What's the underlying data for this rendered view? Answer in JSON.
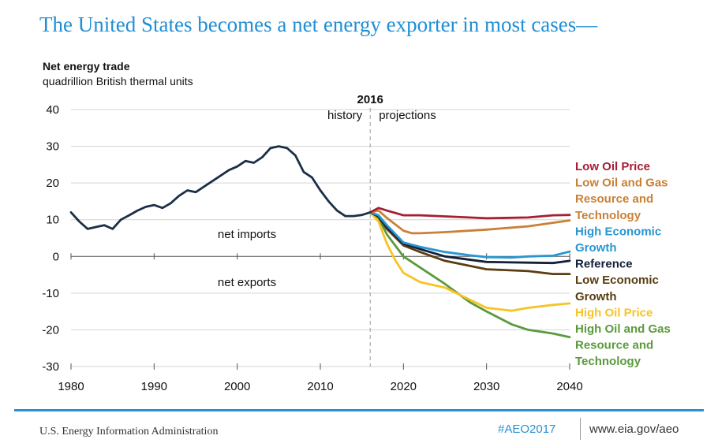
{
  "page": {
    "title": "The United States becomes a net energy exporter in most cases—",
    "footer": {
      "agency": "U.S. Energy Information Administration",
      "hashtag": "#AEO2017",
      "website": "www.eia.gov/aeo"
    }
  },
  "colors": {
    "title": "#1f8fd6",
    "rule": "#2a8fd3"
  },
  "chart_data": {
    "type": "line",
    "ylabel": "Net energy trade",
    "yunit": "quadrillion British thermal units",
    "xlim": [
      1980,
      2040
    ],
    "ylim": [
      -30,
      40
    ],
    "xticks": [
      1980,
      1990,
      2000,
      2010,
      2020,
      2030,
      2040
    ],
    "yticks": [
      40,
      30,
      20,
      10,
      0,
      -10,
      -20,
      -30
    ],
    "divider": {
      "x": 2016,
      "label": "2016",
      "left_label": "history",
      "right_label": "projections"
    },
    "region_labels": {
      "above": "net imports",
      "below": "net exports"
    },
    "history": {
      "color": "#1b2f47",
      "x": [
        1980,
        1981,
        1982,
        1983,
        1984,
        1985,
        1986,
        1987,
        1988,
        1989,
        1990,
        1991,
        1992,
        1993,
        1994,
        1995,
        1996,
        1997,
        1998,
        1999,
        2000,
        2001,
        2002,
        2003,
        2004,
        2005,
        2006,
        2007,
        2008,
        2009,
        2010,
        2011,
        2012,
        2013,
        2014,
        2015,
        2016
      ],
      "y": [
        12,
        9.5,
        7.5,
        8,
        8.5,
        7.5,
        10,
        11.2,
        12.5,
        13.5,
        14,
        13.2,
        14.5,
        16.5,
        18,
        17.5,
        19,
        20.5,
        22,
        23.5,
        24.5,
        26,
        25.5,
        27,
        29.5,
        30,
        29.5,
        27.5,
        23,
        21.5,
        18,
        15,
        12.5,
        11,
        11,
        11.3,
        12
      ]
    },
    "projections": [
      {
        "name": "Low Oil Price",
        "color": "#a31f34",
        "x": [
          2016,
          2017,
          2018,
          2020,
          2022,
          2025,
          2030,
          2035,
          2038,
          2040
        ],
        "y": [
          12,
          13.2,
          12.5,
          11.2,
          11.2,
          10.9,
          10.4,
          10.6,
          11.2,
          11.3
        ]
      },
      {
        "name": "Low Oil and Gas Resource and Technology",
        "color": "#c98036",
        "x": [
          2016,
          2017,
          2018,
          2020,
          2021,
          2022,
          2025,
          2030,
          2035,
          2040
        ],
        "y": [
          12,
          12.5,
          10.5,
          7,
          6.3,
          6.3,
          6.6,
          7.3,
          8.2,
          9.8
        ]
      },
      {
        "name": "High Economic Growth",
        "color": "#2896d1",
        "x": [
          2016,
          2017,
          2018,
          2020,
          2022,
          2025,
          2028,
          2030,
          2033,
          2035,
          2038,
          2040
        ],
        "y": [
          12,
          11.2,
          8.5,
          3.8,
          2.6,
          1.2,
          0.3,
          -0.2,
          -0.3,
          0,
          0.2,
          1.3
        ]
      },
      {
        "name": "Reference",
        "color": "#13203a",
        "x": [
          2016,
          2017,
          2018,
          2020,
          2022,
          2025,
          2030,
          2035,
          2038,
          2040
        ],
        "y": [
          12,
          11,
          8,
          3.5,
          2,
          0,
          -1.5,
          -1.7,
          -1.8,
          -1.2
        ]
      },
      {
        "name": "Low Economic Growth",
        "color": "#5a3d12",
        "x": [
          2016,
          2017,
          2018,
          2020,
          2022,
          2025,
          2030,
          2035,
          2038,
          2040
        ],
        "y": [
          12,
          10.8,
          7.5,
          3,
          1.2,
          -1.2,
          -3.5,
          -4,
          -4.8,
          -4.8
        ]
      },
      {
        "name": "High Oil Price",
        "color": "#f7c325",
        "x": [
          2016,
          2017,
          2018,
          2019,
          2020,
          2022,
          2025,
          2030,
          2033,
          2035,
          2038,
          2040
        ],
        "y": [
          12,
          9.5,
          3.5,
          -1,
          -4.5,
          -7,
          -8.5,
          -14,
          -14.8,
          -14,
          -13.2,
          -12.8
        ]
      },
      {
        "name": "High Oil and Gas Resource and Technology",
        "color": "#5a9a3c",
        "x": [
          2016,
          2017,
          2018,
          2020,
          2022,
          2025,
          2028,
          2030,
          2033,
          2035,
          2038,
          2040
        ],
        "y": [
          12,
          10.5,
          6,
          0,
          -3,
          -7.5,
          -12.5,
          -15,
          -18.5,
          -20,
          -21,
          -22
        ]
      }
    ],
    "legend": [
      {
        "lines": [
          "Low Oil Price"
        ],
        "color": "#a31f34"
      },
      {
        "lines": [
          "Low Oil and Gas",
          "Resource and",
          "Technology"
        ],
        "color": "#c98036"
      },
      {
        "lines": [
          "High Economic",
          "Growth"
        ],
        "color": "#2896d1"
      },
      {
        "lines": [
          "Reference"
        ],
        "color": "#13203a"
      },
      {
        "lines": [
          "Low Economic",
          "Growth"
        ],
        "color": "#5a3d12"
      },
      {
        "lines": [
          "High Oil Price"
        ],
        "color": "#f7c325"
      },
      {
        "lines": [
          "High Oil and Gas",
          "Resource and",
          "Technology"
        ],
        "color": "#5a9a3c"
      }
    ],
    "grid": true
  }
}
